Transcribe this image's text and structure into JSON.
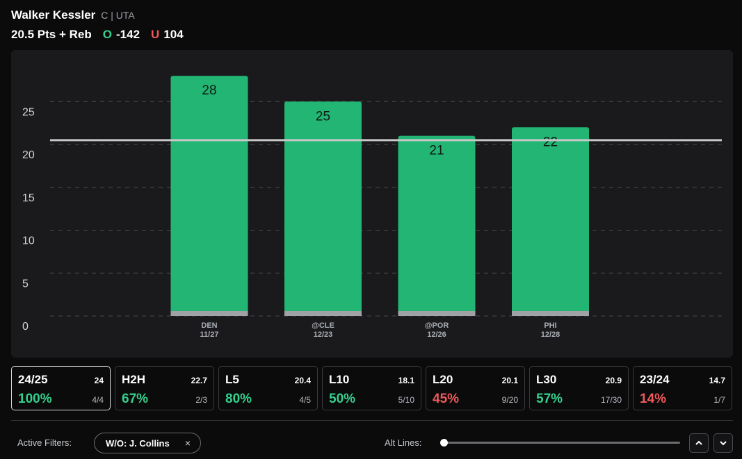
{
  "player": {
    "name": "Walker Kessler",
    "position_team": "C | UTA"
  },
  "prop": {
    "line_label": "20.5 Pts + Reb",
    "over_tag": "O",
    "over_odds": "-142",
    "under_tag": "U",
    "under_odds": "104"
  },
  "colors": {
    "over": "#35d08d",
    "under": "#ef5a5a",
    "bar": "#22b573",
    "line": "#c8c8c8"
  },
  "chart_data": {
    "type": "bar",
    "categories": [
      "DEN",
      "@CLE",
      "@POR",
      "PHI"
    ],
    "dates": [
      "11/27",
      "12/23",
      "12/26",
      "12/28"
    ],
    "values": [
      28,
      25,
      21,
      22
    ],
    "threshold": 20.5,
    "yticks": [
      0,
      5,
      10,
      15,
      20,
      25
    ],
    "ylim": [
      0,
      28.5
    ],
    "grid": true
  },
  "stats": [
    {
      "label": "24/25",
      "avg": "24",
      "pct": "100%",
      "frac": "4/4",
      "tone": "over",
      "active": true
    },
    {
      "label": "H2H",
      "avg": "22.7",
      "pct": "67%",
      "frac": "2/3",
      "tone": "over",
      "active": false
    },
    {
      "label": "L5",
      "avg": "20.4",
      "pct": "80%",
      "frac": "4/5",
      "tone": "over",
      "active": false
    },
    {
      "label": "L10",
      "avg": "18.1",
      "pct": "50%",
      "frac": "5/10",
      "tone": "over",
      "active": false
    },
    {
      "label": "L20",
      "avg": "20.1",
      "pct": "45%",
      "frac": "9/20",
      "tone": "under",
      "active": false
    },
    {
      "label": "L30",
      "avg": "20.9",
      "pct": "57%",
      "frac": "17/30",
      "tone": "over",
      "active": false
    },
    {
      "label": "23/24",
      "avg": "14.7",
      "pct": "14%",
      "frac": "1/7",
      "tone": "under",
      "active": false
    }
  ],
  "filters": {
    "label": "Active Filters:",
    "chip": "W/O: J. Collins",
    "chip_remove": "×"
  },
  "alt_lines": {
    "label": "Alt Lines:",
    "level": 0
  },
  "nav": {
    "up_icon": "chevron-up-icon",
    "down_icon": "chevron-down-icon"
  }
}
